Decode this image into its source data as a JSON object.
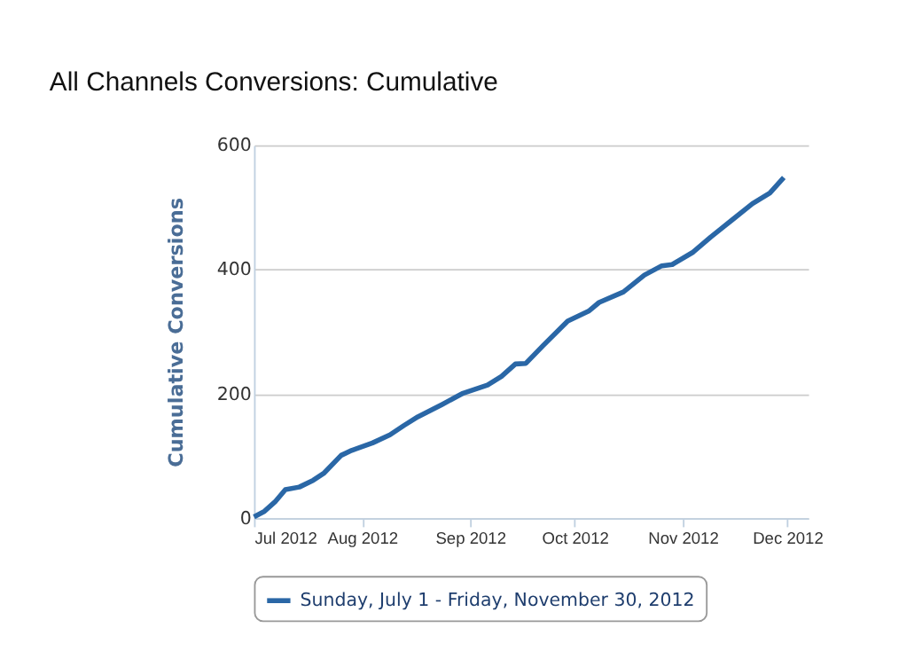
{
  "chart_data": {
    "type": "line",
    "title": "All Channels Conversions: Cumulative",
    "ylabel": "Cumulative Conversions",
    "x": [
      "2012-07-01",
      "2012-07-04",
      "2012-07-07",
      "2012-07-10",
      "2012-07-14",
      "2012-07-18",
      "2012-07-21",
      "2012-07-26",
      "2012-07-29",
      "2012-08-04",
      "2012-08-09",
      "2012-08-13",
      "2012-08-17",
      "2012-08-24",
      "2012-08-30",
      "2012-09-06",
      "2012-09-10",
      "2012-09-14",
      "2012-09-17",
      "2012-09-22",
      "2012-09-29",
      "2012-10-05",
      "2012-10-08",
      "2012-10-15",
      "2012-10-21",
      "2012-10-26",
      "2012-10-29",
      "2012-11-04",
      "2012-11-09",
      "2012-11-15",
      "2012-11-21",
      "2012-11-26",
      "2012-11-30"
    ],
    "series": [
      {
        "name": "Sunday, July 1 - Friday, November 30, 2012",
        "color": "#2a67a6",
        "values": [
          2,
          11,
          26,
          46,
          50,
          61,
          72,
          101,
          109,
          121,
          134,
          149,
          163,
          183,
          201,
          214,
          228,
          248,
          249,
          278,
          317,
          333,
          347,
          364,
          391,
          406,
          408,
          428,
          452,
          479,
          506,
          523,
          548
        ]
      }
    ],
    "xlim": [
      "2012-07-01",
      "2012-12-07"
    ],
    "xticks": [
      {
        "value": "2012-07-01",
        "label": "Jul 2012"
      },
      {
        "value": "2012-08-01",
        "label": "Aug 2012"
      },
      {
        "value": "2012-09-01",
        "label": "Sep 2012"
      },
      {
        "value": "2012-10-01",
        "label": "Oct 2012"
      },
      {
        "value": "2012-11-01",
        "label": "Nov 2012"
      },
      {
        "value": "2012-12-01",
        "label": "Dec 2012"
      }
    ],
    "ylim": [
      0,
      600
    ],
    "yticks": [
      0,
      200,
      400,
      600
    ],
    "grid": "y",
    "legend": "bottom",
    "marker": "none",
    "line_style": "solid"
  }
}
